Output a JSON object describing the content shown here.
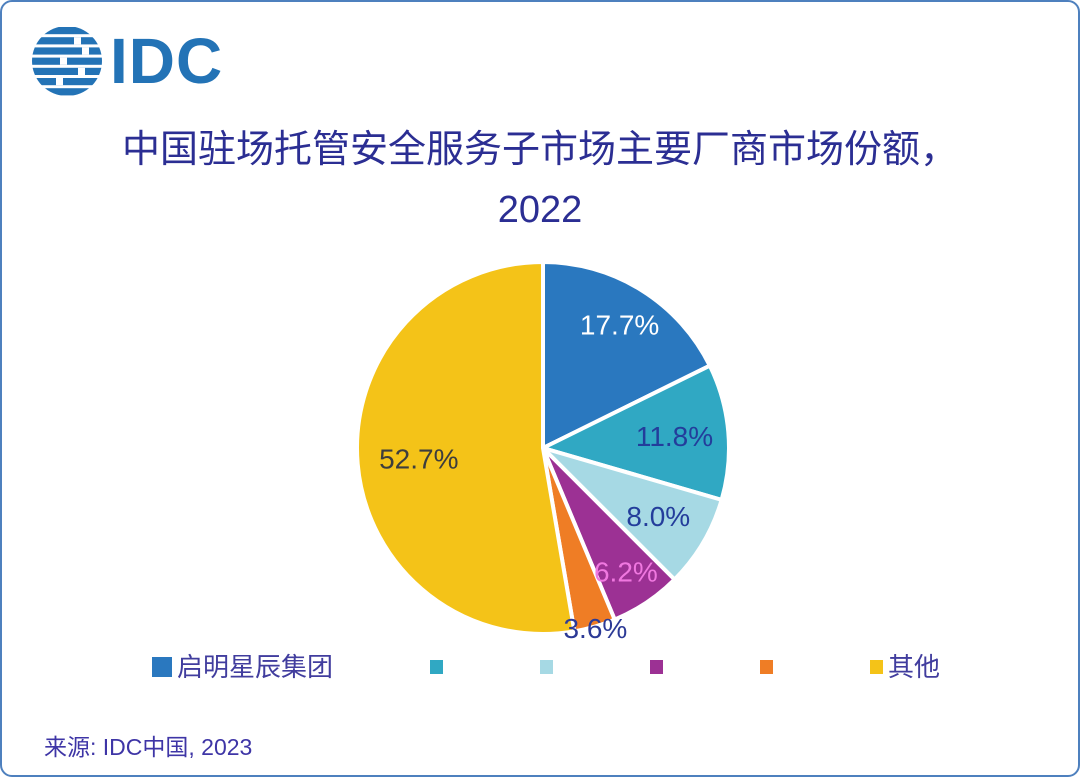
{
  "page": {
    "background_color": "#ffffff",
    "border_color": "#4E80BE"
  },
  "logo": {
    "text": "IDC",
    "color": "#2373B6"
  },
  "title": {
    "line1": "中国驻场托管安全服务子市场主要厂商市场份额，",
    "line2": "2022",
    "color": "#2B2E93"
  },
  "source": {
    "text": "来源: IDC中国, 2023"
  },
  "chart_data": {
    "type": "pie",
    "title": "中国驻场托管安全服务子市场主要厂商市场份额, 2022",
    "start_angle_deg": 0,
    "direction": "clockwise",
    "legend_position": "bottom",
    "separator_color": "#ffffff",
    "slices": [
      {
        "legend_label": "启明星辰集团",
        "value": 17.7,
        "display": "17.7%",
        "color": "#2A78BF",
        "label_color": "#FFFFFF",
        "label_r": 0.78
      },
      {
        "legend_label": "",
        "value": 11.8,
        "display": "11.8%",
        "color": "#30A8C3",
        "label_color": "#233D9B",
        "label_r": 0.71
      },
      {
        "legend_label": "",
        "value": 8.0,
        "display": "8.0%",
        "color": "#A6D9E4",
        "label_color": "#233D9B",
        "label_r": 0.72
      },
      {
        "legend_label": "",
        "value": 6.2,
        "display": "6.2%",
        "color": "#9C3194",
        "label_color": "#F078E0",
        "label_r": 0.8
      },
      {
        "legend_label": "",
        "value": 3.6,
        "display": "3.6%",
        "color": "#EF7D25",
        "label_color": "#2C3A96",
        "label_r": 1.01
      },
      {
        "legend_label": "其他",
        "value": 52.7,
        "display": "52.7%",
        "color": "#F4C318",
        "label_color": "#3D3D3D",
        "label_r": 0.67
      }
    ]
  }
}
